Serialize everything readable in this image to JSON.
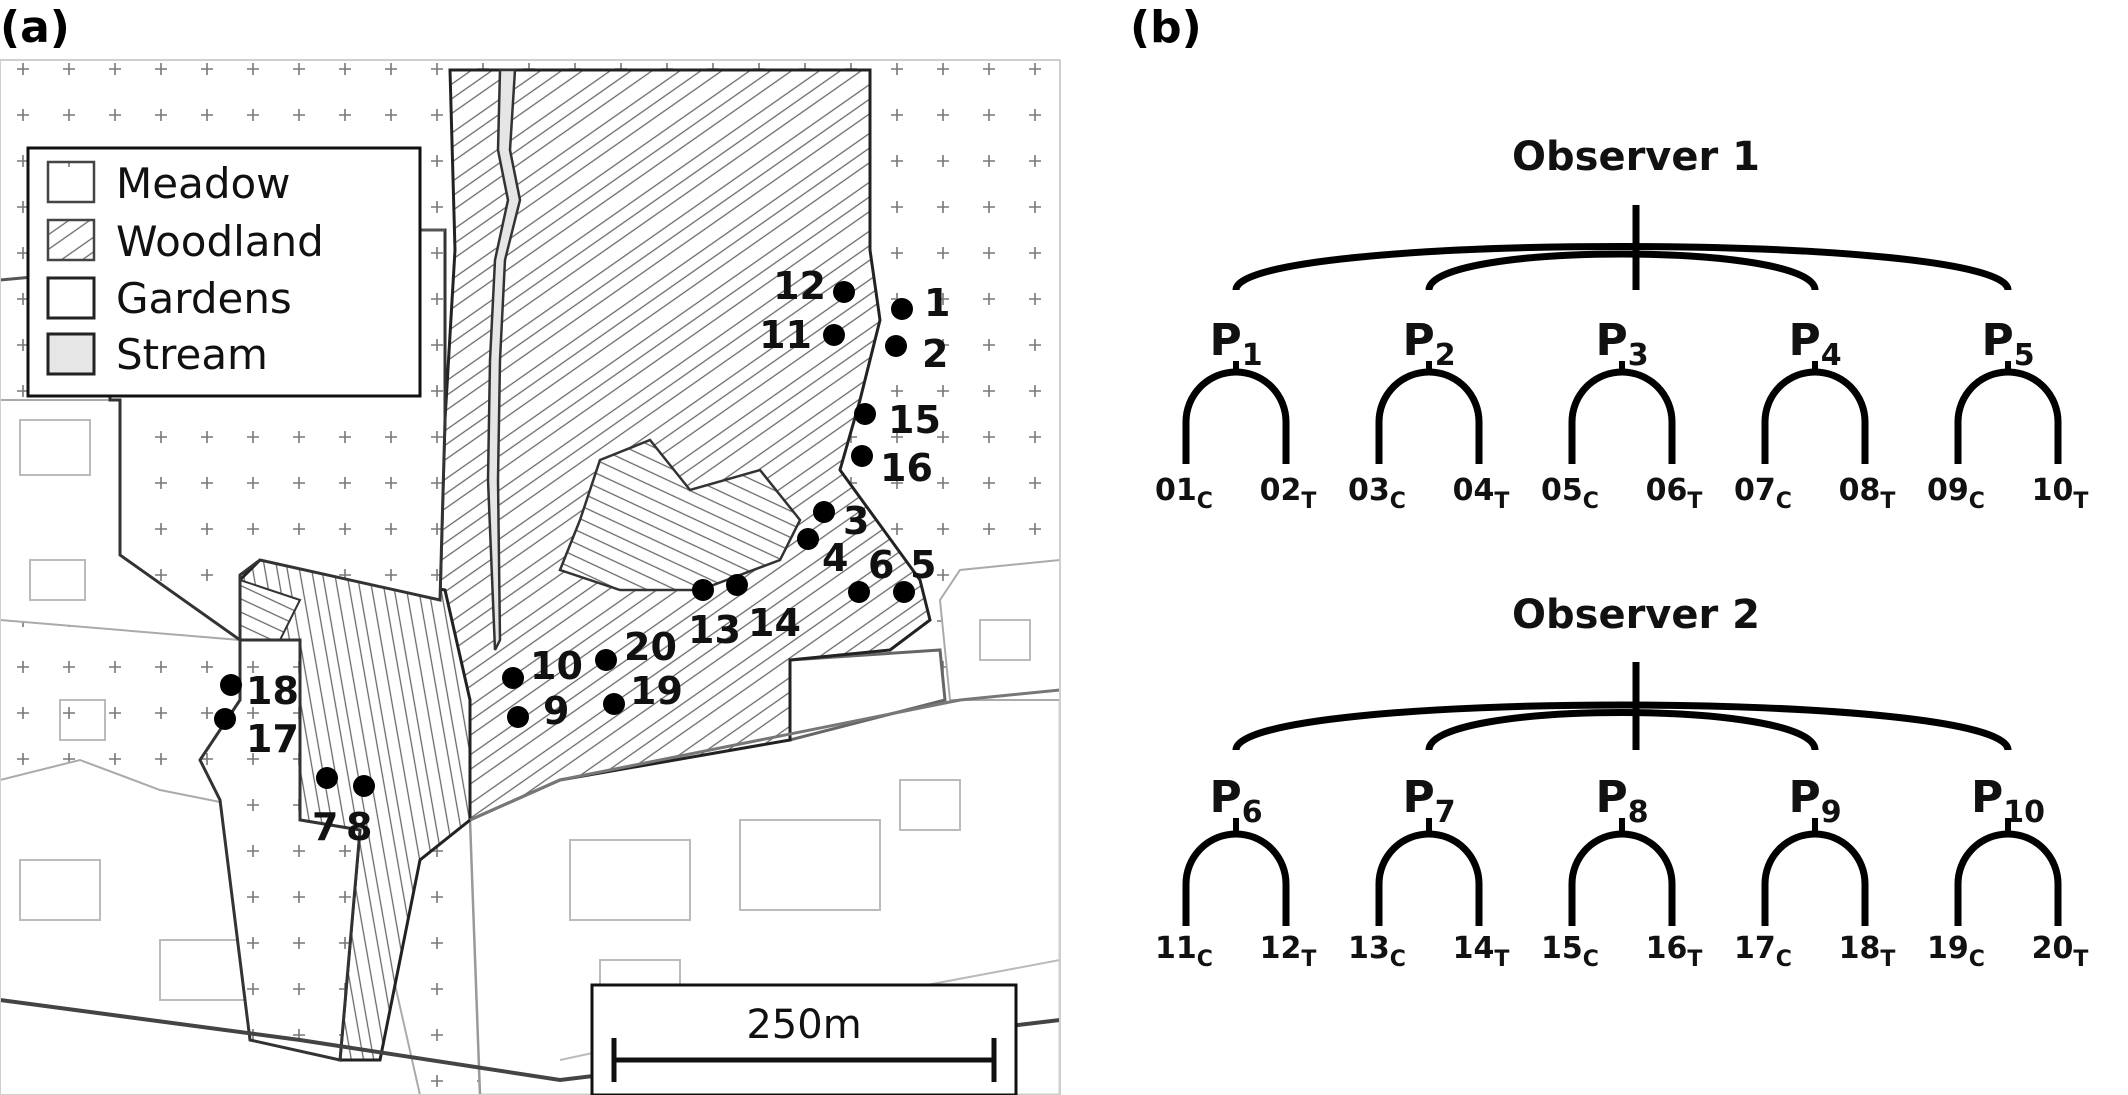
{
  "panel_a": {
    "label": "(a)",
    "legend": [
      {
        "key": "meadow",
        "label": "Meadow"
      },
      {
        "key": "woodland",
        "label": "Woodland"
      },
      {
        "key": "gardens",
        "label": "Gardens"
      },
      {
        "key": "stream",
        "label": "Stream"
      }
    ],
    "scale_bar": "250m",
    "sites": [
      "1",
      "2",
      "3",
      "4",
      "5",
      "6",
      "7",
      "8",
      "9",
      "10",
      "11",
      "12",
      "13",
      "14",
      "15",
      "16",
      "17",
      "18",
      "19",
      "20"
    ]
  },
  "panel_b": {
    "label": "(b)",
    "observers": [
      {
        "title": "Observer 1",
        "pairs": [
          {
            "p": "P",
            "p_sub": "1",
            "c": "01",
            "c_sub": "C",
            "t": "02",
            "t_sub": "T"
          },
          {
            "p": "P",
            "p_sub": "2",
            "c": "03",
            "c_sub": "C",
            "t": "04",
            "t_sub": "T"
          },
          {
            "p": "P",
            "p_sub": "3",
            "c": "05",
            "c_sub": "C",
            "t": "06",
            "t_sub": "T"
          },
          {
            "p": "P",
            "p_sub": "4",
            "c": "07",
            "c_sub": "C",
            "t": "08",
            "t_sub": "T"
          },
          {
            "p": "P",
            "p_sub": "5",
            "c": "09",
            "c_sub": "C",
            "t": "10",
            "t_sub": "T"
          }
        ]
      },
      {
        "title": "Observer 2",
        "pairs": [
          {
            "p": "P",
            "p_sub": "6",
            "c": "11",
            "c_sub": "C",
            "t": "12",
            "t_sub": "T"
          },
          {
            "p": "P",
            "p_sub": "7",
            "c": "13",
            "c_sub": "C",
            "t": "14",
            "t_sub": "T"
          },
          {
            "p": "P",
            "p_sub": "8",
            "c": "15",
            "c_sub": "C",
            "t": "16",
            "t_sub": "T"
          },
          {
            "p": "P",
            "p_sub": "9",
            "c": "17",
            "c_sub": "C",
            "t": "18",
            "t_sub": "T"
          },
          {
            "p": "P",
            "p_sub": "10",
            "c": "19",
            "c_sub": "C",
            "t": "20",
            "t_sub": "T"
          }
        ]
      }
    ]
  }
}
